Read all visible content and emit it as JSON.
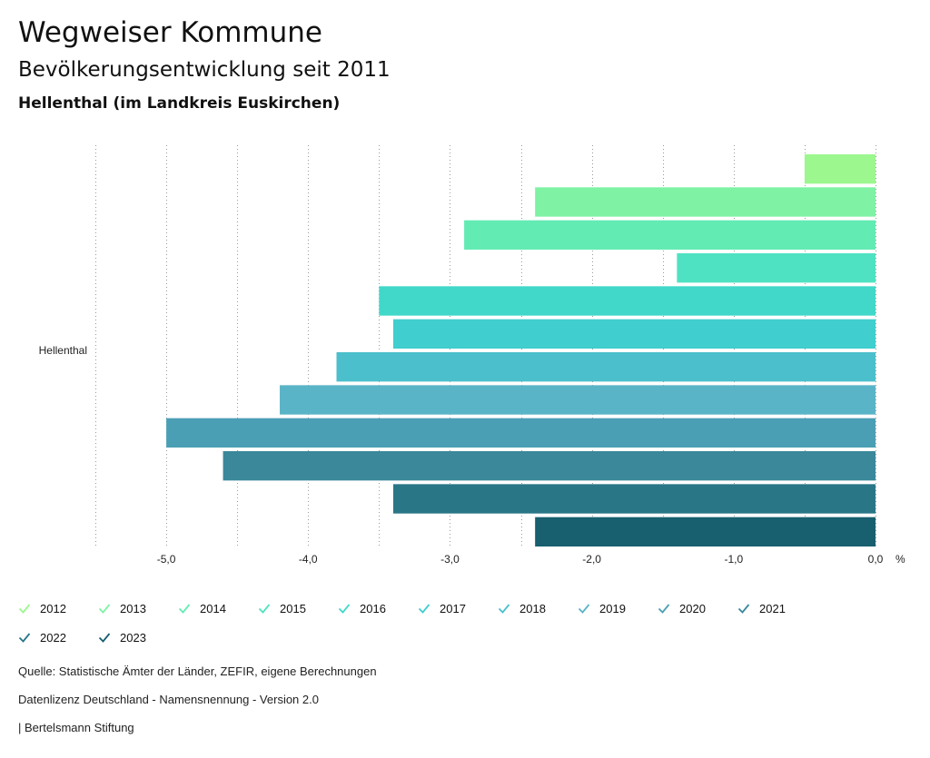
{
  "header": {
    "title": "Wegweiser Kommune",
    "subtitle": "Bevölkerungsentwicklung seit 2011",
    "region": "Hellenthal (im Landkreis Euskirchen)"
  },
  "chart_data": {
    "type": "bar",
    "orientation": "horizontal",
    "categories": [
      "Hellenthal"
    ],
    "series": [
      {
        "name": "2012",
        "values": [
          -0.5
        ],
        "color": "#9cf78f"
      },
      {
        "name": "2013",
        "values": [
          -2.4
        ],
        "color": "#7ff2a4"
      },
      {
        "name": "2014",
        "values": [
          -2.9
        ],
        "color": "#63ebb4"
      },
      {
        "name": "2015",
        "values": [
          -1.4
        ],
        "color": "#4fe2c2"
      },
      {
        "name": "2016",
        "values": [
          -3.5
        ],
        "color": "#41d8c9"
      },
      {
        "name": "2017",
        "values": [
          -3.4
        ],
        "color": "#40cece"
      },
      {
        "name": "2018",
        "values": [
          -3.8
        ],
        "color": "#4bbfcb"
      },
      {
        "name": "2019",
        "values": [
          -4.2
        ],
        "color": "#5ab4c7"
      },
      {
        "name": "2020",
        "values": [
          -5.0
        ],
        "color": "#4b9fb4"
      },
      {
        "name": "2021",
        "values": [
          -4.6
        ],
        "color": "#3a889a"
      },
      {
        "name": "2022",
        "values": [
          -3.4
        ],
        "color": "#297687"
      },
      {
        "name": "2023",
        "values": [
          -2.4
        ],
        "color": "#185f6f"
      }
    ],
    "xlim": [
      -5.5,
      0
    ],
    "x_ticks": [
      "-5,0",
      "-4,0",
      "-3,0",
      "-2,0",
      "-1,0",
      "0,0"
    ],
    "x_tick_values": [
      -5,
      -4,
      -3,
      -2,
      -1,
      0
    ],
    "unit": "%",
    "grid": true,
    "legend_position": "bottom"
  },
  "footer": {
    "source": "Quelle: Statistische Ämter der Länder, ZEFIR, eigene Berechnungen",
    "license": "Datenlizenz Deutschland - Namensnennung - Version 2.0",
    "brand": "| Bertelsmann Stiftung"
  }
}
